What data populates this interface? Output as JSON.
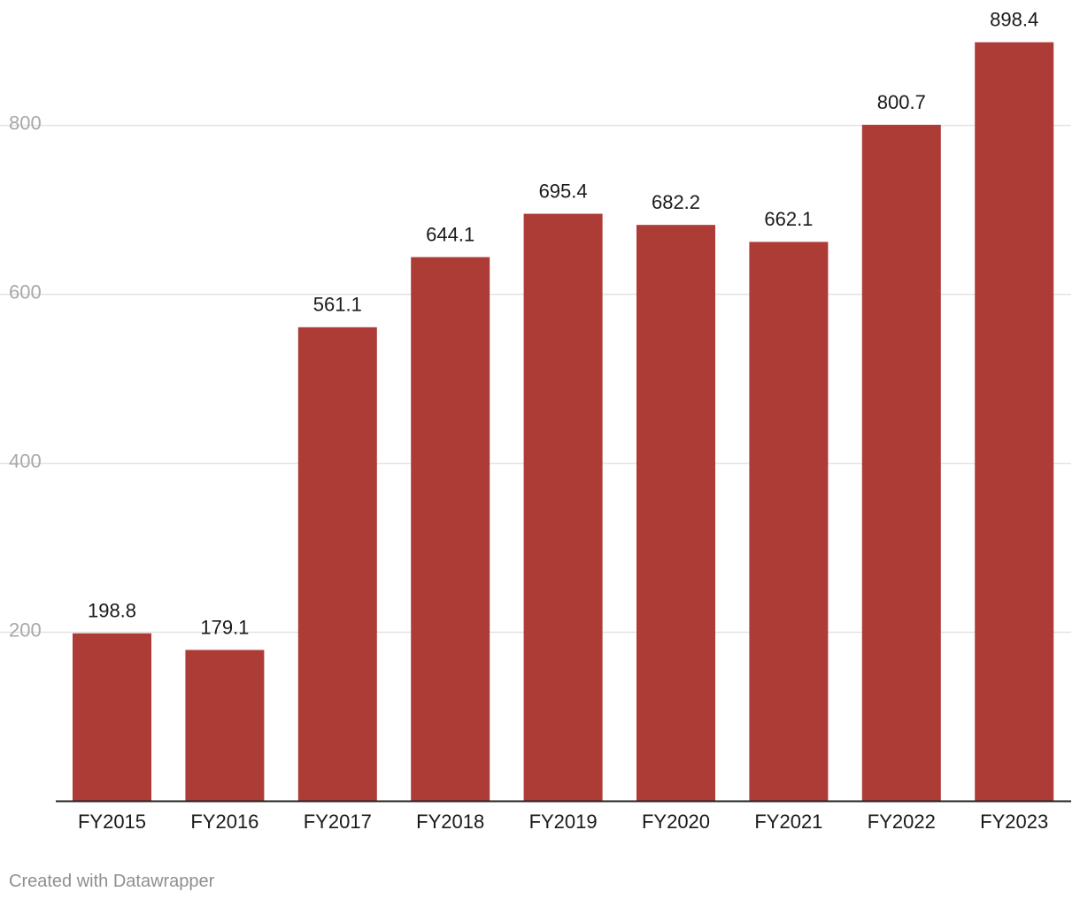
{
  "credit": "Created with Datawrapper",
  "colors": {
    "bar": "#ad3c37",
    "grid": "#e3e3e3",
    "axis_line": "#222222",
    "tick_label": "#a8a8a8",
    "value_label": "#1a1a1a",
    "category_label": "#1a1a1a"
  },
  "chart_data": {
    "type": "bar",
    "title": "",
    "xlabel": "",
    "ylabel": "",
    "categories": [
      "FY2015",
      "FY2016",
      "FY2017",
      "FY2018",
      "FY2019",
      "FY2020",
      "FY2021",
      "FY2022",
      "FY2023"
    ],
    "values": [
      198.8,
      179.1,
      561.1,
      644.1,
      695.4,
      682.2,
      662.1,
      800.7,
      898.4
    ],
    "value_labels": [
      "198.8",
      "179.1",
      "561.1",
      "644.1",
      "695.4",
      "682.2",
      "662.1",
      "800.7",
      "898.4"
    ],
    "ylim": [
      0,
      898.4
    ],
    "yticks": [
      200,
      400,
      600,
      800
    ],
    "ytick_labels": [
      "200",
      "400",
      "600",
      "800"
    ],
    "grid": true,
    "legend": "none"
  }
}
